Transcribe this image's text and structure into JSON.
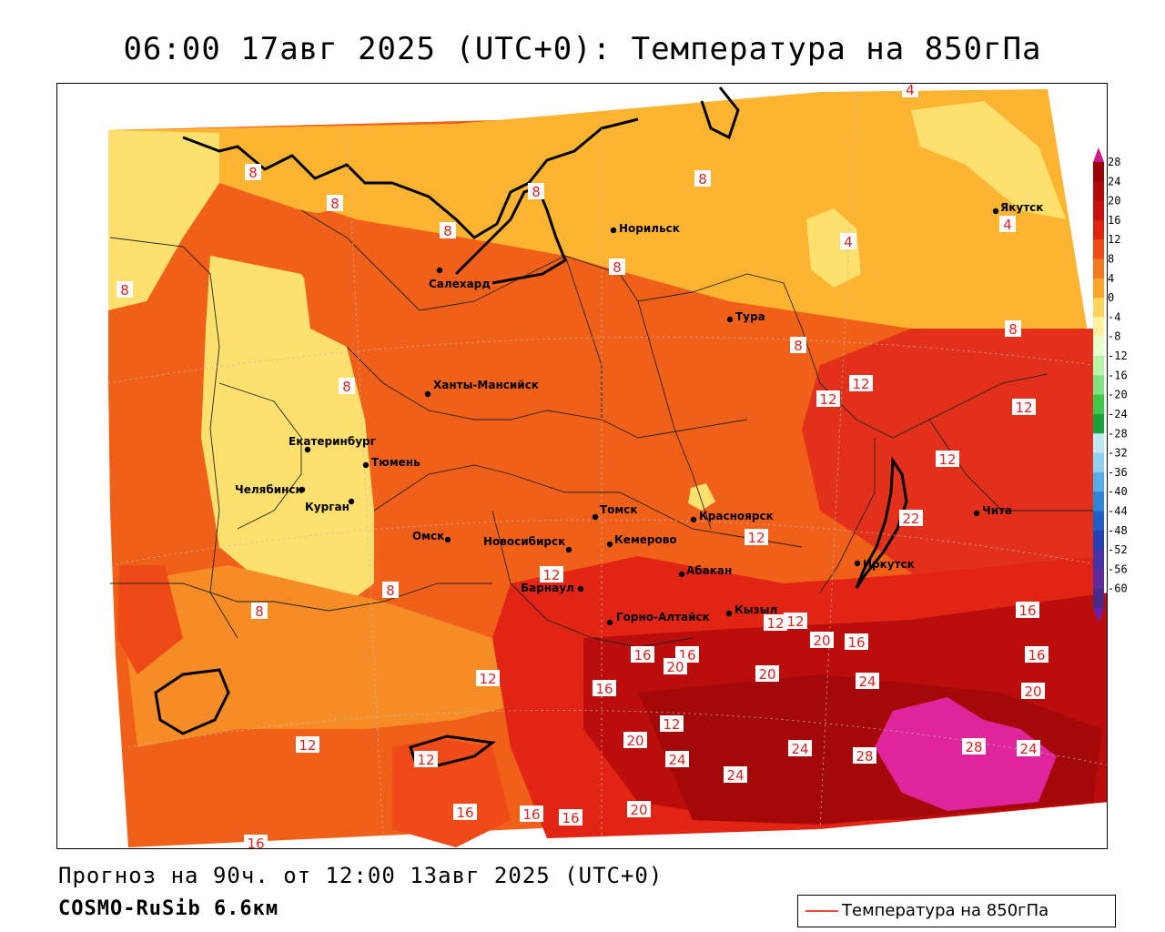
{
  "header": {
    "title": "06:00 17авг 2025 (UTC+0): Температура на 850гПа"
  },
  "footer": {
    "forecast": "Прогноз на 90ч. от 12:00 13авг 2025 (UTC+0)",
    "model": "COSMO-RuSib 6.6км"
  },
  "legend": {
    "label": "Температура на 850гПа",
    "line_color": "#ee4433"
  },
  "colorbar": {
    "ticks": [
      "28",
      "24",
      "20",
      "16",
      "12",
      "8",
      "4",
      "0",
      "-4",
      "-8",
      "-12",
      "-16",
      "-20",
      "-24",
      "-28",
      "-32",
      "-36",
      "-40",
      "-44",
      "-48",
      "-52",
      "-56",
      "-60"
    ]
  },
  "cities": [
    {
      "name": "Норильск"
    },
    {
      "name": "Салехард"
    },
    {
      "name": "Якутск"
    },
    {
      "name": "Тура"
    },
    {
      "name": "Ханты-Мансийск"
    },
    {
      "name": "Екатеринбург"
    },
    {
      "name": "Тюмень"
    },
    {
      "name": "Челябинск"
    },
    {
      "name": "Курган"
    },
    {
      "name": "Омск"
    },
    {
      "name": "Новосибирск"
    },
    {
      "name": "Томск"
    },
    {
      "name": "Красноярск"
    },
    {
      "name": "Кемерово"
    },
    {
      "name": "Абакан"
    },
    {
      "name": "Барнаул"
    },
    {
      "name": "Горно-Алтайск"
    },
    {
      "name": "Кызыл"
    },
    {
      "name": "Иркутск"
    },
    {
      "name": "Чита"
    }
  ],
  "isolines": [
    "4",
    "4",
    "4",
    "8",
    "8",
    "8",
    "8",
    "8",
    "8",
    "8",
    "8",
    "8",
    "8",
    "8",
    "8",
    "8",
    "12",
    "12",
    "12",
    "12",
    "12",
    "12",
    "12",
    "12",
    "12",
    "12",
    "12",
    "12",
    "16",
    "16",
    "16",
    "16",
    "16",
    "16",
    "16",
    "16",
    "16",
    "16",
    "16",
    "20",
    "20",
    "20",
    "20",
    "20",
    "20",
    "24",
    "24",
    "24",
    "24",
    "24",
    "28",
    "28",
    "22",
    "16"
  ]
}
